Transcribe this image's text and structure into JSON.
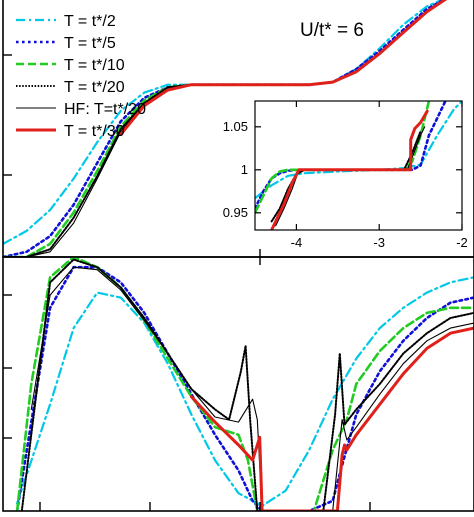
{
  "annotation": "U/t* = 6",
  "legend": [
    "T = t*/2",
    "T = t*/5",
    "T = t*/10",
    "T = t*/20",
    "HF: T=t*/20",
    "T = t*/30"
  ],
  "colors": {
    "cyan": "#00c8e6",
    "blue": "#1010d8",
    "green": "#22cc22",
    "black": "#000000",
    "red": "#e0201a",
    "frame": "#000000",
    "baseline": "#999999"
  },
  "chart_data": [
    {
      "id": "top-panel",
      "type": "line",
      "title": "",
      "xlabel": "",
      "ylabel": "",
      "annotation": "U/t* = 6",
      "legend_position": "top-left",
      "xlim": [
        0,
        1
      ],
      "ylim": [
        0,
        1
      ],
      "xticks": [],
      "yticks": [],
      "series": [
        {
          "name": "T = t*/2",
          "color": "cyan",
          "style": "dashdot",
          "x": [
            0,
            0.05,
            0.1,
            0.15,
            0.2,
            0.25,
            0.3,
            0.35,
            0.4,
            0.45,
            0.5,
            0.55,
            0.6,
            0.65,
            0.7,
            0.75,
            0.8,
            0.85,
            0.9,
            0.95,
            1
          ],
          "y": [
            0.05,
            0.1,
            0.18,
            0.3,
            0.44,
            0.56,
            0.63,
            0.66,
            0.66,
            0.66,
            0.66,
            0.66,
            0.66,
            0.66,
            0.67,
            0.72,
            0.8,
            0.89,
            0.96,
            1.0,
            1.0
          ]
        },
        {
          "name": "T = t*/5",
          "color": "blue",
          "style": "dotted",
          "x": [
            0,
            0.05,
            0.1,
            0.15,
            0.2,
            0.25,
            0.3,
            0.35,
            0.4,
            0.45,
            0.5,
            0.55,
            0.6,
            0.65,
            0.7,
            0.75,
            0.8,
            0.85,
            0.9,
            0.95,
            1
          ],
          "y": [
            0.0,
            0.02,
            0.08,
            0.2,
            0.36,
            0.52,
            0.61,
            0.65,
            0.66,
            0.66,
            0.66,
            0.66,
            0.66,
            0.66,
            0.67,
            0.72,
            0.79,
            0.87,
            0.95,
            1.0,
            1.0
          ]
        },
        {
          "name": "T = t*/10",
          "color": "green",
          "style": "dashed",
          "x": [
            0,
            0.05,
            0.1,
            0.15,
            0.2,
            0.25,
            0.3,
            0.35,
            0.4,
            0.45,
            0.5,
            0.55,
            0.6,
            0.65,
            0.7,
            0.75,
            0.8,
            0.85,
            0.9,
            0.95,
            1
          ],
          "y": [
            0.0,
            0.0,
            0.05,
            0.17,
            0.33,
            0.5,
            0.6,
            0.65,
            0.66,
            0.66,
            0.66,
            0.66,
            0.66,
            0.66,
            0.67,
            0.71,
            0.78,
            0.86,
            0.94,
            1.0,
            1.0
          ]
        },
        {
          "name": "T = t*/20",
          "color": "black",
          "style": "dense-dotted",
          "x": [
            0,
            0.05,
            0.1,
            0.15,
            0.2,
            0.25,
            0.3,
            0.35,
            0.4,
            0.45,
            0.5,
            0.55,
            0.6,
            0.65,
            0.7,
            0.75,
            0.8,
            0.85,
            0.9,
            0.95,
            1
          ],
          "y": [
            0.0,
            0.0,
            0.03,
            0.15,
            0.31,
            0.49,
            0.59,
            0.65,
            0.66,
            0.66,
            0.66,
            0.66,
            0.66,
            0.66,
            0.67,
            0.71,
            0.78,
            0.86,
            0.94,
            1.0,
            1.0
          ]
        },
        {
          "name": "HF: T=t*/20",
          "color": "black",
          "style": "solid-thin",
          "x": [
            0,
            0.05,
            0.1,
            0.15,
            0.2,
            0.25,
            0.3,
            0.35,
            0.4,
            0.45,
            0.5,
            0.55,
            0.6,
            0.65,
            0.7,
            0.75,
            0.8,
            0.85,
            0.9,
            0.95,
            1
          ],
          "y": [
            0.0,
            0.0,
            0.02,
            0.13,
            0.3,
            0.48,
            0.59,
            0.65,
            0.66,
            0.66,
            0.66,
            0.66,
            0.66,
            0.66,
            0.67,
            0.71,
            0.78,
            0.86,
            0.94,
            1.0,
            1.0
          ]
        },
        {
          "name": "T = t*/30",
          "color": "red",
          "style": "solid-thick",
          "x": [
            0.25,
            0.3,
            0.35,
            0.4,
            0.45,
            0.5,
            0.55,
            0.6,
            0.65,
            0.7,
            0.75,
            0.8,
            0.85,
            0.9,
            0.95,
            1
          ],
          "y": [
            0.47,
            0.58,
            0.64,
            0.66,
            0.66,
            0.66,
            0.66,
            0.66,
            0.66,
            0.67,
            0.71,
            0.78,
            0.86,
            0.94,
            1.0,
            1.0
          ]
        }
      ]
    },
    {
      "id": "inset",
      "type": "line",
      "title": "",
      "xlabel": "",
      "ylabel": "",
      "xlim": [
        -4.5,
        -2.0
      ],
      "ylim": [
        0.93,
        1.08
      ],
      "xticks": [
        -4,
        -3,
        -2
      ],
      "xticklabels": [
        "-4",
        "-3",
        "-2"
      ],
      "yticks": [
        0.95,
        1.0,
        1.05
      ],
      "yticklabels": [
        "0.95",
        "1",
        "1.05"
      ],
      "series": [
        {
          "name": "T = t*/2",
          "color": "cyan",
          "style": "dashdot",
          "x": [
            -4.5,
            -4.3,
            -4.1,
            -3.9,
            -3.5,
            -3.0,
            -2.7,
            -2.5,
            -2.3,
            -2.1,
            -2.0
          ],
          "y": [
            0.967,
            0.982,
            0.993,
            0.996,
            0.998,
            1.0,
            1.002,
            1.006,
            1.04,
            1.07,
            1.08
          ]
        },
        {
          "name": "T = t*/5",
          "color": "blue",
          "style": "dotted",
          "x": [
            -4.5,
            -4.4,
            -4.3,
            -4.2,
            -4.1,
            -4.0,
            -3.5,
            -3.0,
            -2.6,
            -2.5,
            -2.4,
            -2.3,
            -2.2
          ],
          "y": [
            0.955,
            0.975,
            0.99,
            0.996,
            0.999,
            1.0,
            1.0,
            1.0,
            1.0,
            1.005,
            1.04,
            1.06,
            1.08
          ]
        },
        {
          "name": "T = t*/10",
          "color": "green",
          "style": "dashed",
          "x": [
            -4.5,
            -4.4,
            -4.3,
            -4.2,
            -4.1,
            -4.0,
            -3.5,
            -3.0,
            -2.7,
            -2.6,
            -2.5,
            -2.4
          ],
          "y": [
            0.95,
            0.97,
            0.99,
            0.998,
            1.0,
            1.0,
            1.0,
            1.0,
            1.0,
            1.01,
            1.04,
            1.08
          ]
        },
        {
          "name": "T = t*/20",
          "color": "black",
          "style": "dense-dotted",
          "x": [
            -4.3,
            -4.2,
            -4.1,
            -4.0,
            -3.9,
            -3.5,
            -3.0,
            -2.7,
            -2.6,
            -2.5
          ],
          "y": [
            0.94,
            0.955,
            0.978,
            0.995,
            1.0,
            1.0,
            1.0,
            1.0,
            1.02,
            1.045
          ]
        },
        {
          "name": "HF: T=t*/20",
          "color": "black",
          "style": "solid-thin",
          "x": [
            -4.25,
            -4.15,
            -4.05,
            -3.98,
            -3.9,
            -3.5,
            -3.0,
            -2.66,
            -2.6,
            -2.5,
            -2.45
          ],
          "y": [
            0.935,
            0.955,
            0.978,
            0.997,
            1.0,
            1.0,
            1.0,
            1.0,
            1.015,
            1.04,
            1.05
          ]
        },
        {
          "name": "T = t*/30",
          "color": "red",
          "style": "solid-thick",
          "x": [
            -4.3,
            -4.15,
            -4.05,
            -3.97,
            -3.96,
            -3.5,
            -3.0,
            -2.62,
            -2.62,
            -2.57,
            -2.5,
            -2.42
          ],
          "y": [
            0.93,
            0.96,
            0.985,
            1.0,
            1.0,
            1.0,
            1.0,
            1.0,
            1.035,
            1.048,
            1.055,
            1.068
          ]
        }
      ]
    },
    {
      "id": "bottom-panel",
      "type": "line",
      "title": "",
      "xlabel": "",
      "ylabel": "",
      "xlim": [
        0,
        1
      ],
      "ylim": [
        0,
        1
      ],
      "xticks": [],
      "yticks": [],
      "series": [
        {
          "name": "T = t*/2",
          "color": "cyan",
          "style": "dashdot",
          "x": [
            0.03,
            0.1,
            0.15,
            0.2,
            0.25,
            0.3,
            0.35,
            0.4,
            0.45,
            0.5,
            0.55,
            0.6,
            0.65,
            0.7,
            0.75,
            0.8,
            0.85,
            0.9,
            0.95,
            1.0
          ],
          "y": [
            0.03,
            0.42,
            0.72,
            0.86,
            0.84,
            0.74,
            0.58,
            0.38,
            0.2,
            0.07,
            0.02,
            0.08,
            0.24,
            0.44,
            0.6,
            0.72,
            0.8,
            0.86,
            0.9,
            0.92
          ]
        },
        {
          "name": "T = t*/5",
          "color": "blue",
          "style": "dotted",
          "x": [
            0.03,
            0.06,
            0.1,
            0.15,
            0.2,
            0.25,
            0.3,
            0.35,
            0.4,
            0.45,
            0.5,
            0.53,
            0.55,
            0.6,
            0.65,
            0.7,
            0.72,
            0.75,
            0.8,
            0.85,
            0.9,
            0.95,
            1.0
          ],
          "y": [
            0.0,
            0.35,
            0.8,
            0.96,
            0.96,
            0.9,
            0.78,
            0.62,
            0.46,
            0.3,
            0.16,
            0.04,
            0.0,
            0.0,
            0.0,
            0.04,
            0.18,
            0.38,
            0.55,
            0.67,
            0.76,
            0.82,
            0.84
          ]
        },
        {
          "name": "T = t*/10",
          "color": "green",
          "style": "dashed",
          "x": [
            0.03,
            0.06,
            0.1,
            0.15,
            0.2,
            0.25,
            0.3,
            0.35,
            0.4,
            0.45,
            0.5,
            0.52,
            0.54,
            0.6,
            0.66,
            0.7,
            0.73,
            0.75,
            0.8,
            0.85,
            0.9,
            0.95,
            1.0
          ],
          "y": [
            0.0,
            0.5,
            0.92,
            1.0,
            0.96,
            0.88,
            0.75,
            0.6,
            0.45,
            0.33,
            0.3,
            0.2,
            0.0,
            0.0,
            0.0,
            0.24,
            0.36,
            0.5,
            0.63,
            0.72,
            0.78,
            0.8,
            0.8
          ]
        },
        {
          "name": "T = t*/20",
          "color": "black",
          "style": "dense-dotted",
          "x": [
            0.04,
            0.07,
            0.1,
            0.15,
            0.2,
            0.25,
            0.3,
            0.35,
            0.4,
            0.45,
            0.48,
            0.505,
            0.515,
            0.525,
            0.54,
            0.55,
            0.6,
            0.68,
            0.705,
            0.715,
            0.725,
            0.75,
            0.8,
            0.85,
            0.9,
            0.95,
            1.0
          ],
          "y": [
            0.0,
            0.45,
            0.9,
            0.99,
            0.96,
            0.88,
            0.76,
            0.62,
            0.48,
            0.4,
            0.36,
            0.55,
            0.65,
            0.35,
            0.0,
            0.0,
            0.0,
            0.0,
            0.38,
            0.62,
            0.34,
            0.4,
            0.5,
            0.62,
            0.7,
            0.76,
            0.78
          ]
        },
        {
          "name": "HF: T=t*/20",
          "color": "black",
          "style": "solid-thin",
          "x": [
            0.06,
            0.1,
            0.15,
            0.2,
            0.25,
            0.3,
            0.35,
            0.4,
            0.45,
            0.5,
            0.53,
            0.54,
            0.55,
            0.6,
            0.7,
            0.72,
            0.73,
            0.75,
            0.8,
            0.85,
            0.9,
            0.95,
            1.0
          ],
          "y": [
            0.4,
            0.85,
            0.96,
            0.95,
            0.87,
            0.75,
            0.62,
            0.48,
            0.37,
            0.35,
            0.44,
            0.36,
            0.0,
            0.0,
            0.0,
            0.36,
            0.28,
            0.33,
            0.46,
            0.58,
            0.67,
            0.72,
            0.74
          ]
        },
        {
          "name": "T = t*/30",
          "color": "red",
          "style": "solid-thick",
          "x": [
            0.4,
            0.45,
            0.5,
            0.53,
            0.545,
            0.55,
            0.555,
            0.56,
            0.6,
            0.65,
            0.7,
            0.71,
            0.72,
            0.725,
            0.73,
            0.75,
            0.8,
            0.85,
            0.9,
            0.95,
            1.0
          ],
          "y": [
            0.45,
            0.35,
            0.26,
            0.2,
            0.29,
            0.0,
            0.0,
            0.0,
            0.0,
            0.0,
            0.0,
            0.0,
            0.22,
            0.26,
            0.24,
            0.3,
            0.42,
            0.54,
            0.64,
            0.7,
            0.72
          ]
        }
      ]
    }
  ]
}
